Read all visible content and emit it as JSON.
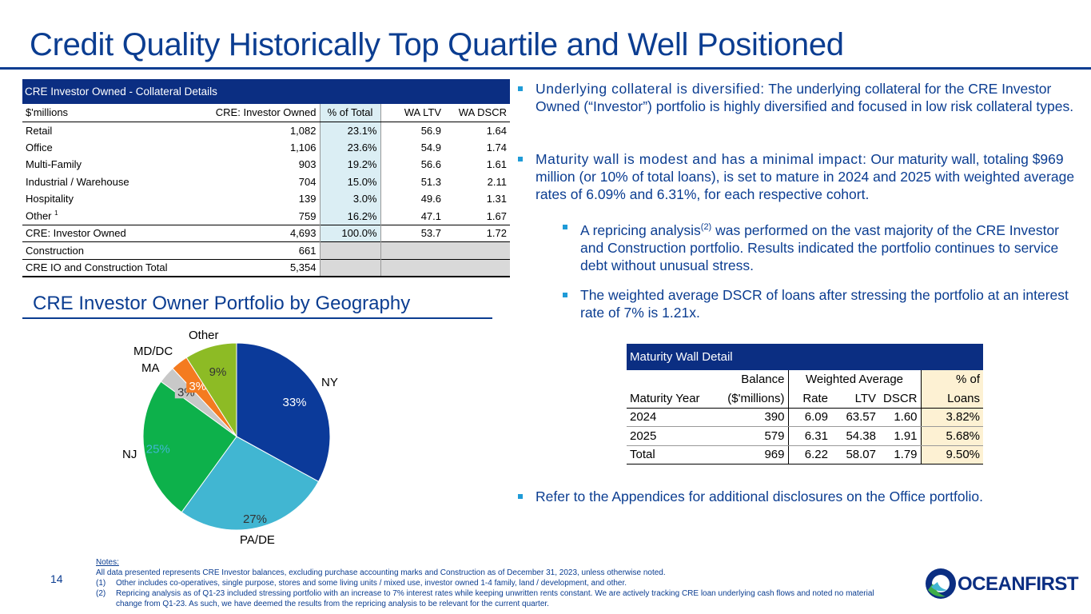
{
  "title": "Credit Quality Historically Top Quartile and Well Positioned",
  "cre_table": {
    "header": "CRE Investor Owned - Collateral Details",
    "columns": [
      "$'millions",
      "CRE: Investor Owned",
      "% of Total",
      "WA LTV",
      "WA DSCR"
    ],
    "rows": [
      {
        "name": "Retail",
        "amount": "1,082",
        "pct": "23.1%",
        "ltv": "56.9",
        "dscr": "1.64"
      },
      {
        "name": "Office",
        "amount": "1,106",
        "pct": "23.6%",
        "ltv": "54.9",
        "dscr": "1.74"
      },
      {
        "name": "Multi-Family",
        "amount": "903",
        "pct": "19.2%",
        "ltv": "56.6",
        "dscr": "1.61"
      },
      {
        "name": "Industrial / Warehouse",
        "amount": "704",
        "pct": "15.0%",
        "ltv": "51.3",
        "dscr": "2.11"
      },
      {
        "name": "Hospitality",
        "amount": "139",
        "pct": "3.0%",
        "ltv": "49.6",
        "dscr": "1.31"
      },
      {
        "name": "Other",
        "sup": "1",
        "amount": "759",
        "pct": "16.2%",
        "ltv": "47.1",
        "dscr": "1.67"
      }
    ],
    "total": {
      "name": "CRE: Investor Owned",
      "amount": "4,693",
      "pct": "100.0%",
      "ltv": "53.7",
      "dscr": "1.72"
    },
    "construction": {
      "name": "Construction",
      "amount": "661"
    },
    "grand_total": {
      "name": "CRE IO and Construction Total",
      "amount": "5,354"
    }
  },
  "geo_title": "CRE Investor Owner Portfolio by Geography",
  "chart_data": {
    "type": "pie",
    "title": "CRE Investor Owner Portfolio by Geography",
    "categories": [
      "NY",
      "PA/DE",
      "NJ",
      "MA",
      "MD/DC",
      "Other"
    ],
    "values": [
      33,
      27,
      25,
      3,
      3,
      9
    ],
    "labels": [
      "33%",
      "27%",
      "25%",
      "3%",
      "3%",
      "9%"
    ],
    "colors": [
      "#0B3A9A",
      "#41B6D2",
      "#0DB14B",
      "#C8C8C8",
      "#F47B20",
      "#8DBB25"
    ]
  },
  "bullets": {
    "b1_lead": "Underlying collateral is diversified:",
    "b1_text": " The underlying collateral for the CRE Investor Owned (“Investor”) portfolio is highly diversified and focused in low risk collateral types.",
    "b2_lead": "Maturity wall is modest and has a minimal impact:",
    "b2_text": " Our maturity wall, totaling $969 million (or 10% of total loans), is set to mature in 2024 and 2025 with weighted average rates of 6.09% and 6.31%, for each respective cohort.",
    "b3_pre": "A repricing analysis",
    "b3_sup": "(2)",
    "b3_post": " was performed on the vast majority of the CRE Investor and Construction portfolio. Results indicated the portfolio continues to service debt without unusual stress.",
    "b4": "The weighted average DSCR of loans after stressing the portfolio at an interest rate of 7% is 1.21x.",
    "b5": "Refer to the Appendices for additional disclosures on the Office portfolio."
  },
  "maturity": {
    "header": "Maturity Wall Detail",
    "h1": {
      "balance": "Balance",
      "wa": "Weighted Average",
      "pct": "% of"
    },
    "h2": {
      "year": "Maturity Year",
      "balance": "($'millions)",
      "rate": "Rate",
      "ltv": "LTV",
      "dscr": "DSCR",
      "loans": "Loans"
    },
    "rows": [
      {
        "year": "2024",
        "balance": "390",
        "rate": "6.09",
        "ltv": "63.57",
        "dscr": "1.60",
        "loans": "3.82%"
      },
      {
        "year": "2025",
        "balance": "579",
        "rate": "6.31",
        "ltv": "54.38",
        "dscr": "1.91",
        "loans": "5.68%"
      },
      {
        "year": "Total",
        "balance": "969",
        "rate": "6.22",
        "ltv": "58.07",
        "dscr": "1.79",
        "loans": "9.50%"
      }
    ]
  },
  "notes": {
    "heading": "Notes:",
    "line0": "All data presented represents CRE Investor balances, excluding purchase accounting marks and Construction as of December 31, 2023, unless otherwise noted.",
    "n1_key": "(1)",
    "n1": "Other includes co-operatives, single purpose, stores and some living units / mixed use, investor owned 1-4 family, land / development, and other.",
    "n2_key": "(2)",
    "n2": "Repricing analysis as of Q1-23 included stressing portfolio with an increase to 7% interest rates while keeping unwritten rents constant. We are actively tracking CRE loan underlying cash flows and noted no material change from Q1-23. As such, we have deemed the results from the repricing analysis to be relevant for the current quarter."
  },
  "page_number": "14",
  "logo_text": "OCEANFIRST"
}
